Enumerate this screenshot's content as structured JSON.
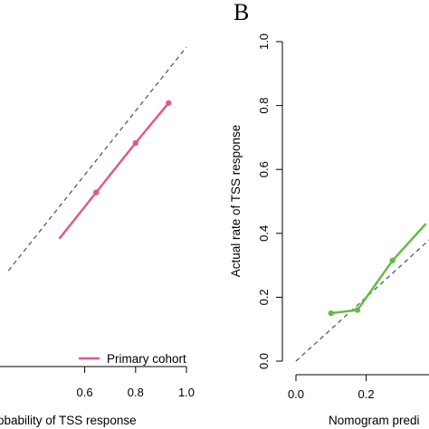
{
  "chart_data": [
    {
      "panel": "A",
      "panel_label": "",
      "type": "line",
      "xlabel": "Nomogram predicted probability of TSS response",
      "xlabel_visible": "obability of TSS response",
      "ylabel": "",
      "xlim": [
        0.0,
        1.0
      ],
      "ylim": [
        0.0,
        1.0
      ],
      "xticks": [
        "0.6",
        "0.8",
        "1.0"
      ],
      "xtick_values": [
        0.6,
        0.8,
        1.0
      ],
      "reference_line": {
        "style": "dashed",
        "color": "#555577",
        "from": [
          0,
          0
        ],
        "to": [
          1,
          1
        ]
      },
      "series": [
        {
          "name": "Primary cohort",
          "color": "#e05a89",
          "x": [
            0.5,
            0.645,
            0.8,
            0.93
          ],
          "y": [
            0.4,
            0.545,
            0.7,
            0.825
          ],
          "points": [
            [
              0.645,
              0.545
            ],
            [
              0.8,
              0.7
            ],
            [
              0.93,
              0.825
            ]
          ]
        }
      ],
      "legend": {
        "position": "bottom-right",
        "entries": [
          "Primary cohort"
        ]
      }
    },
    {
      "panel": "B",
      "panel_label": "B",
      "type": "line",
      "xlabel": "Nomogram predi",
      "ylabel": "Actual rate of TSS response",
      "xlim": [
        0.0,
        1.0
      ],
      "ylim": [
        0.0,
        1.0
      ],
      "xticks": [
        "0.0",
        "0.2"
      ],
      "xtick_values": [
        0.0,
        0.2
      ],
      "yticks": [
        "0.0",
        "0.2",
        "0.4",
        "0.6",
        "0.8",
        "1.0"
      ],
      "ytick_values": [
        0.0,
        0.2,
        0.4,
        0.6,
        0.8,
        1.0
      ],
      "reference_line": {
        "style": "dashed",
        "color": "#555577",
        "from": [
          0,
          0
        ],
        "to": [
          1,
          1
        ]
      },
      "series": [
        {
          "name": "",
          "color": "#66bb44",
          "x": [
            0.1,
            0.175,
            0.275,
            0.37
          ],
          "y": [
            0.15,
            0.16,
            0.315,
            0.43
          ],
          "points": [
            [
              0.1,
              0.15
            ],
            [
              0.175,
              0.16
            ],
            [
              0.275,
              0.315
            ]
          ]
        }
      ]
    }
  ]
}
